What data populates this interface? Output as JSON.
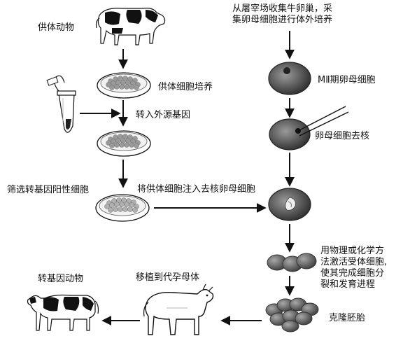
{
  "labels": {
    "donor_animal": "供体动物",
    "donor_cell_culture": "供体细胞培养",
    "transfer_foreign_gene": "转入外源基因",
    "screen_positive_cells": "筛选转基因阳性细胞",
    "inject_donor_cell": "将供体细胞注入去核卵母细胞",
    "collect_ovaries_line1": "从屠宰场收集牛卵巢，采",
    "collect_ovaries_line2": "集卵母细胞进行体外培养",
    "mii_oocyte": "MⅡ期卵母细胞",
    "oocyte_enucleation": "卵母细胞去核",
    "activate_line1": "用物理或化学方",
    "activate_line2": "法激活受体细胞,",
    "activate_line3": "使其完成细胞分",
    "activate_line4": "裂和发育进程",
    "cloned_embryo": "克隆胚胎",
    "transplant_surrogate": "移植到代孕母体",
    "transgenic_animal": "转基因动物"
  },
  "icons": {
    "donor_cow": "cow-icon",
    "test_tube": "test-tube-icon",
    "petri_dish": "petri-dish-icon",
    "oocyte": "oocyte-icon",
    "micropipette": "micropipette-icon",
    "two_cell_embryo": "embryo-icon",
    "surrogate_cow": "surrogate-cow-icon",
    "transgenic_cow": "cow-icon",
    "arrow": "arrow-icon"
  },
  "colors": {
    "ink": "#111111",
    "cell_dark": "#4a4a4a",
    "cell_mid": "#8a8a8a",
    "cell_light": "#cfcfcf"
  }
}
